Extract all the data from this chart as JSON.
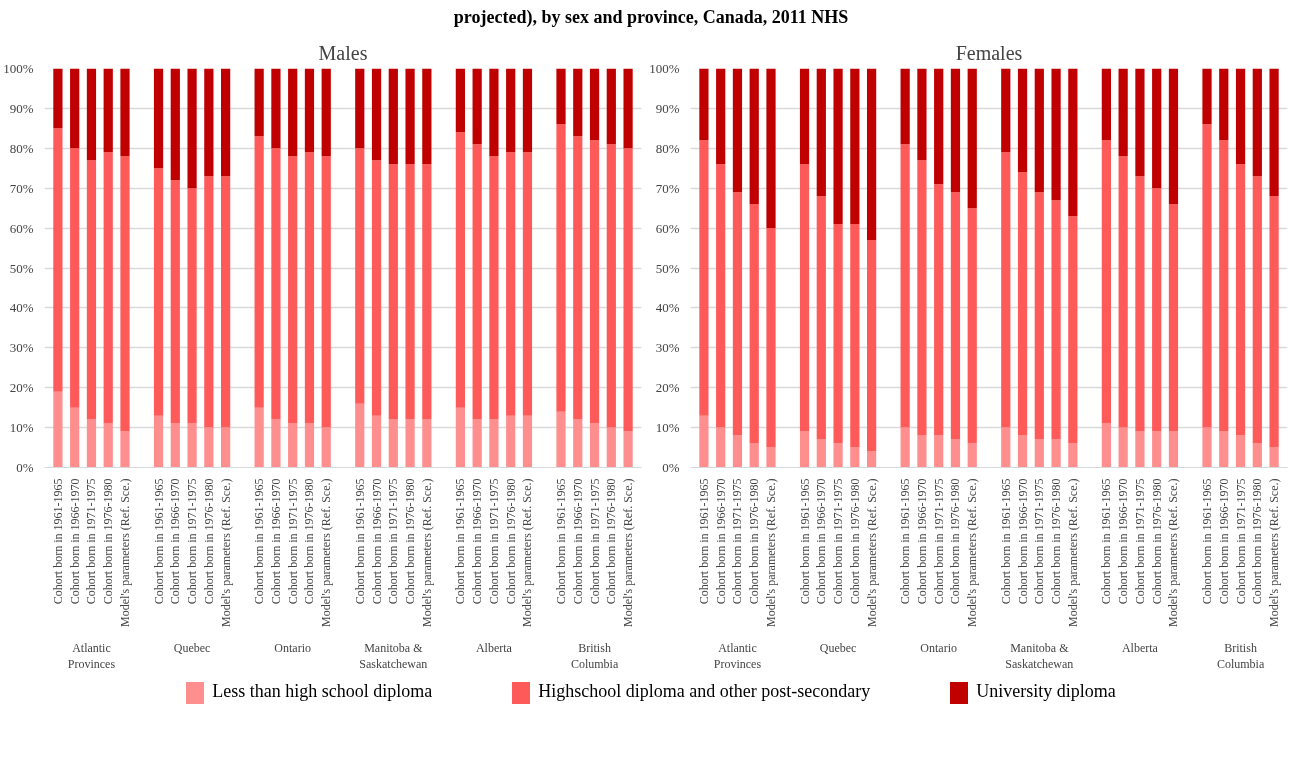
{
  "chart_data": [
    {
      "type": "bar",
      "stacked": true,
      "title": "projected), by sex and province, Canada, 2011 NHS",
      "subtitle": "Males",
      "categories": [
        "Cohort born in 1961-1965",
        "Cohort born in 1966-1970",
        "Cohort born in 1971-1975",
        "Cohort born in 1976-1980",
        "Model's parameters (Ref. Sce.)",
        "Cohort born in 1961-1965",
        "Cohort born in 1966-1970",
        "Cohort born in 1971-1975",
        "Cohort born in 1976-1980",
        "Model's parameters (Ref. Sce.)",
        "Cohort born in 1961-1965",
        "Cohort born in 1966-1970",
        "Cohort born in 1971-1975",
        "Cohort born in 1976-1980",
        "Model's parameters (Ref. Sce.)",
        "Cohort born in 1961-1965",
        "Cohort born in 1966-1970",
        "Cohort born in 1971-1975",
        "Cohort born in 1976-1980",
        "Model's parameters (Ref. Sce.)",
        "Cohort born in 1961-1965",
        "Cohort born in 1966-1970",
        "Cohort born in 1971-1975",
        "Cohort born in 1976-1980",
        "Model's parameters (Ref. Sce.)",
        "Cohort born in 1961-1965",
        "Cohort born in 1966-1970",
        "Cohort born in 1971-1975",
        "Cohort born in 1976-1980",
        "Model's parameters (Ref. Sce.)"
      ],
      "annotations": [
        "Atlantic Provinces",
        "Quebec",
        "Ontario",
        "Manitoba & Saskatchewan",
        "Alberta",
        "British Columbia"
      ],
      "series": [
        {
          "name": "Less than high school diploma",
          "color": "#ff8f8f",
          "values": [
            19,
            15,
            12,
            11,
            9,
            13,
            11,
            11,
            10,
            10,
            15,
            12,
            11,
            11,
            10,
            16,
            13,
            12,
            12,
            12,
            15,
            12,
            12,
            13,
            13,
            14,
            12,
            11,
            10,
            9
          ]
        },
        {
          "name": "Highschool diploma and other post-secondary",
          "color": "#ff5a5a",
          "values": [
            66,
            65,
            65,
            68,
            69,
            62,
            61,
            59,
            63,
            63,
            68,
            68,
            67,
            68,
            68,
            64,
            64,
            64,
            64,
            64,
            69,
            69,
            66,
            66,
            66,
            72,
            71,
            71,
            71,
            71
          ]
        },
        {
          "name": "University diploma",
          "color": "#c00000",
          "values": [
            15,
            20,
            23,
            21,
            22,
            25,
            28,
            30,
            27,
            27,
            17,
            20,
            22,
            21,
            22,
            20,
            23,
            24,
            24,
            24,
            16,
            19,
            22,
            21,
            21,
            14,
            17,
            18,
            19,
            20
          ]
        }
      ],
      "ylim": [
        0,
        100
      ],
      "yticks": [
        {
          "value": 0,
          "label": "0%"
        },
        {
          "value": 10,
          "label": "10%"
        },
        {
          "value": 20,
          "label": "20%"
        },
        {
          "value": 30,
          "label": "30%"
        },
        {
          "value": 40,
          "label": "40%"
        },
        {
          "value": 50,
          "label": "50%"
        },
        {
          "value": 60,
          "label": "60%"
        },
        {
          "value": 70,
          "label": "70%"
        },
        {
          "value": 80,
          "label": "80%"
        },
        {
          "value": 90,
          "label": "90%"
        },
        {
          "value": 100,
          "label": "100%"
        }
      ],
      "grid": "y",
      "legend": "bottom"
    },
    {
      "type": "bar",
      "stacked": true,
      "subtitle": "Females",
      "categories": [
        "Cohort born in 1961-1965",
        "Cohort born in 1966-1970",
        "Cohort born in 1971-1975",
        "Cohort born in 1976-1980",
        "Model's parameters (Ref. Sce.)",
        "Cohort born in 1961-1965",
        "Cohort born in 1966-1970",
        "Cohort born in 1971-1975",
        "Cohort born in 1976-1980",
        "Model's parameters (Ref. Sce.)",
        "Cohort born in 1961-1965",
        "Cohort born in 1966-1970",
        "Cohort born in 1971-1975",
        "Cohort born in 1976-1980",
        "Model's parameters (Ref. Sce.)",
        "Cohort born in 1961-1965",
        "Cohort born in 1966-1970",
        "Cohort born in 1971-1975",
        "Cohort born in 1976-1980",
        "Model's parameters (Ref. Sce.)",
        "Cohort born in 1961-1965",
        "Cohort born in 1966-1970",
        "Cohort born in 1971-1975",
        "Cohort born in 1976-1980",
        "Model's parameters (Ref. Sce.)",
        "Cohort born in 1961-1965",
        "Cohort born in 1966-1970",
        "Cohort born in 1971-1975",
        "Cohort born in 1976-1980",
        "Model's parameters (Ref. Sce.)"
      ],
      "annotations": [
        "Atlantic Provinces",
        "Quebec",
        "Ontario",
        "Manitoba & Saskatchewan",
        "Alberta",
        "British Columbia"
      ],
      "series": [
        {
          "color": "#ff8f8f",
          "values": [
            13,
            10,
            8,
            6,
            5,
            9,
            7,
            6,
            5,
            4,
            10,
            8,
            8,
            7,
            6,
            10,
            8,
            7,
            7,
            6,
            11,
            10,
            9,
            9,
            9,
            10,
            9,
            8,
            6,
            5
          ]
        },
        {
          "color": "#ff5a5a",
          "values": [
            69,
            66,
            61,
            60,
            55,
            67,
            61,
            55,
            56,
            53,
            71,
            69,
            63,
            62,
            59,
            69,
            66,
            62,
            60,
            57,
            71,
            68,
            64,
            61,
            57,
            76,
            73,
            68,
            67,
            63
          ]
        },
        {
          "color": "#c00000",
          "values": [
            18,
            24,
            31,
            34,
            40,
            24,
            32,
            39,
            39,
            43,
            19,
            23,
            29,
            31,
            35,
            21,
            26,
            31,
            33,
            37,
            18,
            22,
            27,
            30,
            34,
            14,
            18,
            24,
            27,
            32
          ]
        }
      ],
      "ylim": [
        0,
        100
      ],
      "yticks": [
        {
          "value": 0,
          "label": "0%"
        },
        {
          "value": 10,
          "label": "10%"
        },
        {
          "value": 20,
          "label": "20%"
        },
        {
          "value": 30,
          "label": "30%"
        },
        {
          "value": 40,
          "label": "40%"
        },
        {
          "value": 50,
          "label": "50%"
        },
        {
          "value": 60,
          "label": "60%"
        },
        {
          "value": 70,
          "label": "70%"
        },
        {
          "value": 80,
          "label": "80%"
        },
        {
          "value": 90,
          "label": "90%"
        },
        {
          "value": 100,
          "label": "100%"
        }
      ],
      "grid": "y"
    }
  ]
}
